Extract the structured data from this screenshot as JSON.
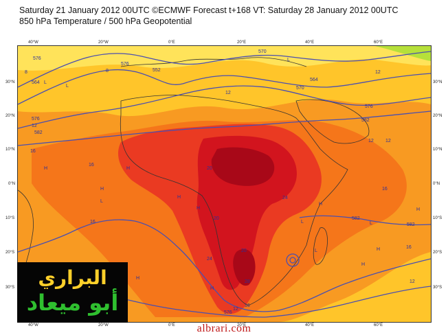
{
  "header": {
    "line1": "Saturday 21 January 2012 00UTC ©ECMWF Forecast t+168 VT: Saturday 28 January 2012 00UTC",
    "line2": "850 hPa Temperature / 500 hPa Geopotential"
  },
  "axes": {
    "lon_top": [
      "40°W",
      "20°W",
      "0°E",
      "20°E",
      "40°E",
      "60°E"
    ],
    "lon_bottom": [
      "40°W",
      "20°W",
      "0°E",
      "20°E",
      "40°E",
      "60°E"
    ],
    "lat_left": [
      "30°N",
      "20°N",
      "10°N",
      "0°N",
      "10°S",
      "20°S",
      "30°S"
    ],
    "lat_right": [
      "30°N",
      "20°N",
      "10°N",
      "0°N",
      "10°S",
      "20°S",
      "30°S"
    ]
  },
  "contour_labels": [
    "576",
    "564",
    "552",
    "576",
    "570",
    "564",
    "576",
    "582",
    "582",
    "576",
    "576",
    "582",
    "582",
    "570"
  ],
  "temp_labels": [
    "8",
    "12",
    "12",
    "16",
    "16",
    "12",
    "20",
    "24",
    "20",
    "24",
    "28",
    "20",
    "16",
    "16",
    "12",
    "12",
    "16",
    "12",
    "16",
    "12",
    "8"
  ],
  "pressure_marks": [
    "L",
    "H",
    "H",
    "H",
    "L",
    "H",
    "H",
    "L",
    "H",
    "L",
    "H",
    "L",
    "H",
    "H",
    "H",
    "L",
    "H",
    "L"
  ],
  "colors": {
    "lightyellow": "#ffe35a",
    "yellow": "#ffc52a",
    "orange": "#f89a22",
    "darkorange": "#f5761a",
    "red": "#ea3a22",
    "crimson": "#d2141e",
    "darkred": "#a80818",
    "green": "#b6e03a",
    "contour": "#4a4fb0"
  },
  "logo": {
    "line1": "البراري",
    "line2": "أبو ميعاد"
  },
  "watermark": "albrari.com"
}
